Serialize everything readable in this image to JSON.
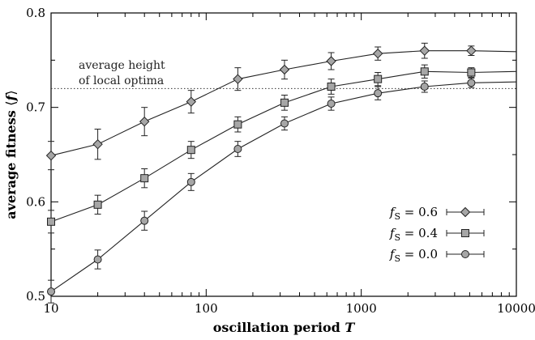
{
  "chart_data": {
    "type": "line",
    "xlabel": "oscillation period T",
    "ylabel": "average fitness ⟨f⟩",
    "xscale": "log",
    "xlim": [
      10,
      10000
    ],
    "ylim": [
      0.5,
      0.8
    ],
    "x_ticks": [
      10,
      100,
      1000,
      10000
    ],
    "x_tick_labels": [
      "10",
      "100",
      "1000",
      "10000"
    ],
    "y_ticks": [
      0.5,
      0.6,
      0.7,
      0.8
    ],
    "y_tick_labels": [
      "0.5",
      "0.6",
      "0.7",
      "0.8"
    ],
    "grid": false,
    "legend_position": "bottom-right",
    "x": [
      10,
      20,
      40,
      80,
      160,
      320,
      640,
      1280,
      2560,
      5120,
      10000
    ],
    "series": [
      {
        "name": "f_S = 0.6",
        "marker": "diamond",
        "values": [
          0.649,
          0.661,
          0.685,
          0.706,
          0.73,
          0.74,
          0.749,
          0.757,
          0.76,
          0.76,
          0.759
        ],
        "errors": [
          0.015,
          0.016,
          0.015,
          0.012,
          0.012,
          0.01,
          0.009,
          0.007,
          0.008,
          0.005,
          0.0
        ]
      },
      {
        "name": "f_S = 0.4",
        "marker": "square",
        "values": [
          0.579,
          0.597,
          0.625,
          0.655,
          0.682,
          0.705,
          0.722,
          0.73,
          0.738,
          0.737,
          0.738
        ],
        "errors": [
          0.012,
          0.01,
          0.01,
          0.009,
          0.008,
          0.008,
          0.008,
          0.007,
          0.007,
          0.005,
          0.0
        ]
      },
      {
        "name": "f_S = 0.0",
        "marker": "circle",
        "values": [
          0.505,
          0.539,
          0.58,
          0.621,
          0.656,
          0.683,
          0.704,
          0.715,
          0.722,
          0.726,
          0.727
        ],
        "errors": [
          0.012,
          0.01,
          0.01,
          0.009,
          0.008,
          0.007,
          0.007,
          0.007,
          0.006,
          0.005,
          0.0
        ]
      }
    ],
    "reference_line": {
      "y": 0.72,
      "style": "dotted",
      "label_line1": "average height",
      "label_line2": "of local optima"
    },
    "legend": {
      "entries": [
        {
          "symbol": "f",
          "subscript": "S",
          "rest": " = 0.6",
          "marker": "diamond"
        },
        {
          "symbol": "f",
          "subscript": "S",
          "rest": " = 0.4",
          "marker": "square"
        },
        {
          "symbol": "f",
          "subscript": "S",
          "rest": " = 0.0",
          "marker": "circle"
        }
      ]
    },
    "colors": {
      "line": "#222222",
      "marker_fill": "#a6a6a6",
      "marker_stroke": "#222222"
    }
  }
}
